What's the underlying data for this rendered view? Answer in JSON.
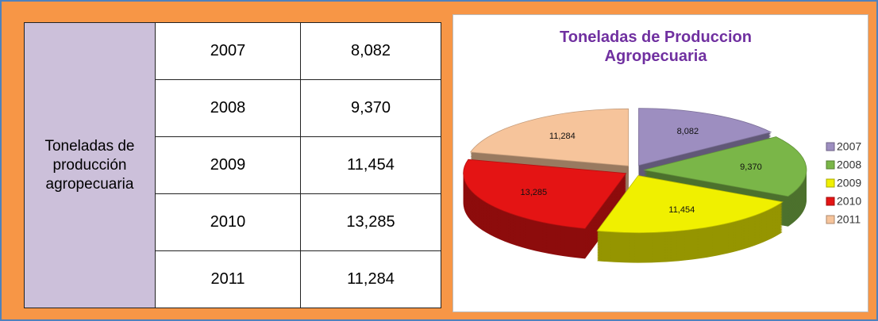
{
  "table": {
    "row_header": "Toneladas de producción agropecuaria",
    "rows": [
      [
        "2007",
        "8,082"
      ],
      [
        "2008",
        "9,370"
      ],
      [
        "2009",
        "11,454"
      ],
      [
        "2010",
        "13,285"
      ],
      [
        "2011",
        "11,284"
      ]
    ]
  },
  "chart_data": {
    "type": "pie3d",
    "title": "Toneladas de Produccion Agropecuaria",
    "categories": [
      "2007",
      "2008",
      "2009",
      "2010",
      "2011"
    ],
    "values": [
      8082,
      9370,
      11454,
      13285,
      11284
    ],
    "value_labels": [
      "8,082",
      "9,370",
      "11,454",
      "13,285",
      "11,284"
    ],
    "colors": [
      "#9d8ec0",
      "#7ab648",
      "#f0f000",
      "#e41414",
      "#f6c49b"
    ],
    "legend": "right"
  }
}
